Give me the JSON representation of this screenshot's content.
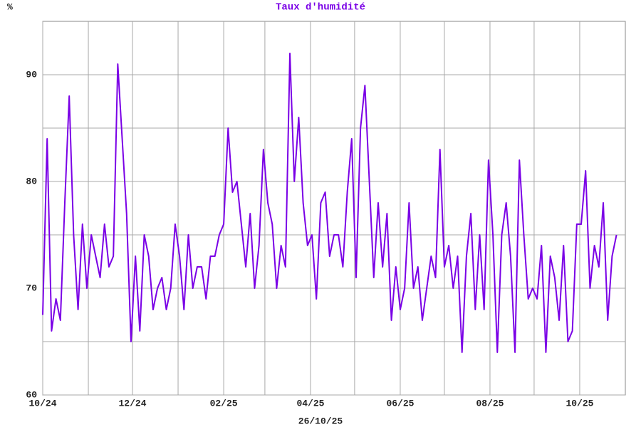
{
  "chart_data": {
    "type": "line",
    "title": "Taux d'humidité",
    "y_unit": "%",
    "x_label": "26/10/25",
    "color": "#7a00e6",
    "x": [
      0,
      3,
      6,
      9,
      12,
      15,
      18,
      21,
      24,
      27,
      30,
      33,
      36,
      39,
      42,
      45,
      48,
      51,
      54,
      57,
      60,
      63,
      66,
      69,
      72,
      75,
      78,
      81,
      84,
      87,
      90,
      93,
      96,
      99,
      102,
      105,
      108,
      111,
      114,
      117,
      120,
      123,
      126,
      129,
      132,
      135,
      138,
      141,
      144,
      147,
      150,
      153,
      156,
      159,
      162,
      165,
      168,
      171,
      174,
      177,
      180,
      183,
      186,
      189,
      192,
      195,
      198,
      201,
      204,
      207,
      210,
      213,
      216,
      219,
      222,
      225,
      228,
      231,
      234,
      237,
      240,
      243,
      246,
      249,
      252,
      255,
      258,
      261,
      264,
      267,
      270,
      273,
      276,
      279,
      282,
      285,
      288,
      291,
      294,
      297,
      300,
      303,
      306,
      309,
      312,
      315,
      318,
      321,
      324,
      327,
      330,
      333,
      336,
      339,
      342,
      345,
      348,
      351,
      354,
      357,
      360,
      363,
      366,
      369,
      372,
      375,
      378,
      381,
      384,
      387,
      390
    ],
    "values": [
      67.5,
      84,
      66,
      69,
      67,
      78,
      88,
      75,
      68,
      76,
      70,
      75,
      73,
      71,
      76,
      72,
      73,
      91,
      84,
      77,
      65,
      73,
      66,
      75,
      73,
      68,
      70,
      71,
      68,
      70,
      76,
      73,
      68,
      75,
      70,
      72,
      72,
      69,
      73,
      73,
      75,
      76,
      85,
      79,
      80,
      76,
      72,
      77,
      70,
      74,
      83,
      78,
      76,
      70,
      74,
      72,
      92,
      80,
      86,
      78,
      74,
      75,
      69,
      78,
      79,
      73,
      75,
      75,
      72,
      79,
      84,
      71,
      85,
      89,
      80,
      71,
      78,
      72,
      77,
      67,
      72,
      68,
      70,
      78,
      70,
      72,
      67,
      70,
      73,
      71,
      83,
      72,
      74,
      70,
      73,
      64,
      73,
      77,
      68,
      75,
      68,
      82,
      75,
      64,
      75,
      78,
      73,
      64,
      82,
      75,
      69,
      70,
      69,
      74,
      64,
      73,
      71,
      67,
      74,
      65,
      66,
      76,
      76,
      81,
      70,
      74,
      72,
      78,
      67,
      73,
      75
    ],
    "xlim": [
      0,
      396
    ],
    "xticks": [
      {
        "value": 0,
        "label": "10/24"
      },
      {
        "value": 61,
        "label": "12/24"
      },
      {
        "value": 123,
        "label": "02/25"
      },
      {
        "value": 182,
        "label": "04/25"
      },
      {
        "value": 243,
        "label": "06/25"
      },
      {
        "value": 304,
        "label": "08/25"
      },
      {
        "value": 365,
        "label": "10/25"
      }
    ],
    "x_minor_ticks": [
      31,
      92,
      151,
      212,
      273,
      334
    ],
    "ylim": [
      60,
      95
    ],
    "yticks": [
      60,
      70,
      80,
      90
    ],
    "y_minor_ticks": [
      65,
      75,
      85
    ],
    "grid": true
  }
}
